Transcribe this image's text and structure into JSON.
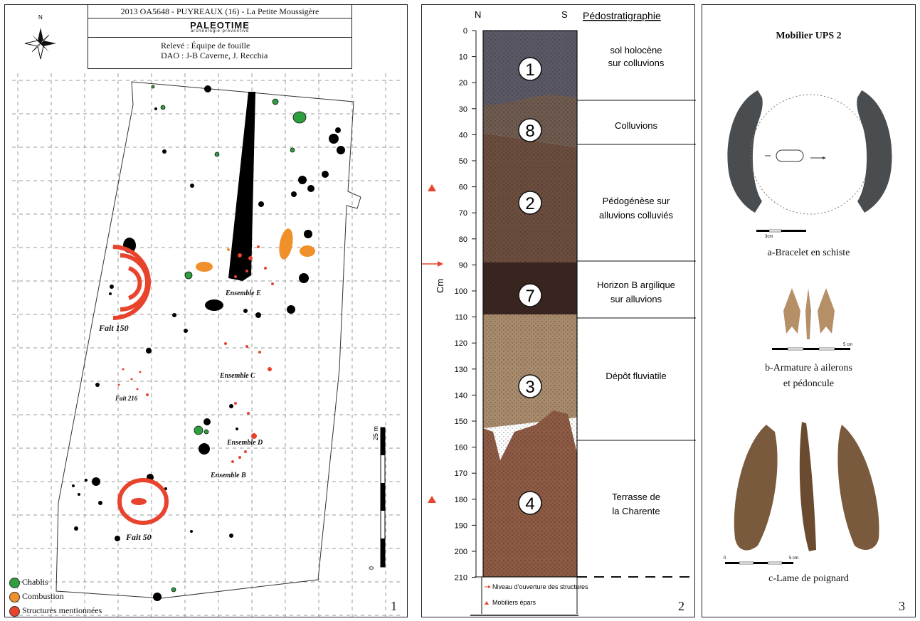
{
  "panel1": {
    "north_label": "N",
    "title_line": "2013 OA5648 - PUYREAUX (16) - La Petite Moussigère",
    "logo_text": "PALEOTIME",
    "logo_sub": "archéologie préventive",
    "releve": "Relevé : Équipe de fouille",
    "dao": "DAO : J-B Caverne, J. Recchia",
    "labels": {
      "fait150": "Fait 150",
      "fait216": "Fait 216",
      "fait50": "Fait 50",
      "ensE": "Ensemble E",
      "ensC": "Ensemble C",
      "ensD": "Ensemble D",
      "ensB": "Ensemble B"
    },
    "scale_label": "25 m",
    "scale_zero": "0",
    "legend": [
      {
        "label": "Chablis",
        "color": "#2e9e3e"
      },
      {
        "label": "Combustion",
        "color": "#f0902a"
      },
      {
        "label": "Structures mentionnées",
        "color": "#e8432d"
      }
    ],
    "number": "1"
  },
  "panel2": {
    "north": "N",
    "south": "S",
    "title": "Pédostratigraphie",
    "axis_label": "Cm",
    "ticks": [
      "0",
      "10",
      "20",
      "30",
      "40",
      "50",
      "60",
      "70",
      "80",
      "90",
      "100",
      "110",
      "120",
      "130",
      "140",
      "150",
      "160",
      "170",
      "180",
      "190",
      "200",
      "210"
    ],
    "layers": [
      {
        "num": "1",
        "desc1": "sol holocène",
        "desc2": "sur colluvions",
        "color": "#5b5866"
      },
      {
        "num": "8",
        "desc1": "Colluvions",
        "desc2": "",
        "color": "#6e5a4e"
      },
      {
        "num": "2",
        "desc1": "Pédogénèse sur",
        "desc2": "alluvions colluviés",
        "color": "#6b4d3e"
      },
      {
        "num": "7",
        "desc1": "Horizon B argilique",
        "desc2": "sur alluvions",
        "color": "#3a2520"
      },
      {
        "num": "3",
        "desc1": "Dépôt fluviatile",
        "desc2": "",
        "color": "#a88b6c"
      },
      {
        "num": "4",
        "desc1": "Terrasse de",
        "desc2": "la Charente",
        "color": "#8d5a44"
      }
    ],
    "legend_arrow": "Niveau d’ouverture des structures",
    "legend_triangle": "Mobiliers épars",
    "number": "2"
  },
  "panel3": {
    "title": "Mobilier UPS 2",
    "cap_a": "a-Bracelet en schiste",
    "cap_b1": "b-Armature à ailerons",
    "cap_b2": "et pédoncule",
    "cap_c": "c-Lame de poignard",
    "scale_a": "3cm",
    "scale_b": "5 cm",
    "scale_c0": "0",
    "scale_c": "5 cm",
    "number": "3"
  }
}
